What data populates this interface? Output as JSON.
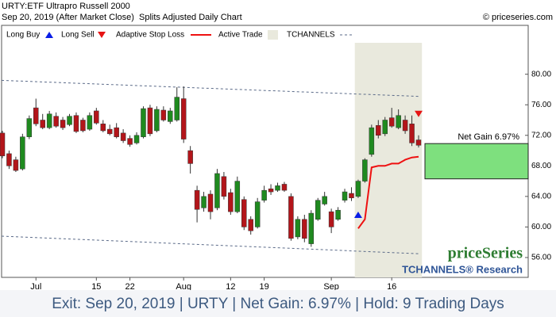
{
  "header": {
    "title": "URTY:ETF Ultrapro Russell 2000",
    "subtitle": "Sep 20, 2019 (After Market Close)  Splits Adjusted Daily Chart",
    "copyright": "© priceseries.com"
  },
  "chart_data": {
    "type": "candlestick",
    "categories": [
      null,
      null,
      null,
      null,
      null,
      "Jul",
      null,
      null,
      null,
      null,
      null,
      null,
      null,
      null,
      "15",
      null,
      null,
      null,
      null,
      "22",
      null,
      null,
      null,
      null,
      null,
      null,
      null,
      "Aug",
      null,
      null,
      null,
      null,
      null,
      null,
      "12",
      null,
      null,
      null,
      null,
      "19",
      null,
      null,
      null,
      null,
      null,
      null,
      null,
      null,
      null,
      "Sep",
      null,
      null,
      null,
      null,
      null,
      null,
      null,
      null,
      "16",
      null,
      null,
      null,
      null
    ],
    "open": [
      72.3,
      69.6,
      68.8,
      67.6,
      71.8,
      75.6,
      74.0,
      73.0,
      74.5,
      74.0,
      73.4,
      74.6,
      74.0,
      72.8,
      75.2,
      73.5,
      72.8,
      73.0,
      72.3,
      71.6,
      71.0,
      71.8,
      75.6,
      72.6,
      75.3,
      73.8,
      74.0,
      76.8,
      70.0,
      64.8,
      62.5,
      64.3,
      62.5,
      66.6,
      64.5,
      62.0,
      63.6,
      61.0,
      60.0,
      63.5,
      65.0,
      64.8,
      65.6,
      64.0,
      58.7,
      61.0,
      57.8,
      61.0,
      63.0,
      62.0,
      61.0,
      63.5,
      64.4,
      64.0,
      66.0,
      69.5,
      73.3,
      72.2,
      74.3,
      73.0,
      74.0,
      73.5,
      71.4
    ],
    "high": [
      72.6,
      70.0,
      69.2,
      72.2,
      74.6,
      76.8,
      74.8,
      75.2,
      75.0,
      74.4,
      74.8,
      75.0,
      74.3,
      75.0,
      75.6,
      74.0,
      73.4,
      73.6,
      72.8,
      72.0,
      72.4,
      75.8,
      76.0,
      75.8,
      75.8,
      75.6,
      78.3,
      78.4,
      70.6,
      65.4,
      64.6,
      64.8,
      67.6,
      67.2,
      65.0,
      66.6,
      64.0,
      61.4,
      63.8,
      65.4,
      65.6,
      65.8,
      65.9,
      64.4,
      61.4,
      61.6,
      62.2,
      63.8,
      64.6,
      62.4,
      62.6,
      65.0,
      65.2,
      66.2,
      69.0,
      73.4,
      74.0,
      74.4,
      75.6,
      75.4,
      74.6,
      74.6,
      72.0
    ],
    "low": [
      69.0,
      67.6,
      67.2,
      67.4,
      71.5,
      73.2,
      72.8,
      72.8,
      73.0,
      72.7,
      73.2,
      72.3,
      72.4,
      72.6,
      73.4,
      72.4,
      72.0,
      71.6,
      71.0,
      70.5,
      70.8,
      71.6,
      71.9,
      72.4,
      73.8,
      73.5,
      73.8,
      71.0,
      67.0,
      60.6,
      62.0,
      61.0,
      62.2,
      63.6,
      61.6,
      61.8,
      59.6,
      59.0,
      59.8,
      63.2,
      64.2,
      64.6,
      64.6,
      58.2,
      58.4,
      58.0,
      57.4,
      60.8,
      62.8,
      59.2,
      60.8,
      63.2,
      63.4,
      63.8,
      65.8,
      69.2,
      71.6,
      71.9,
      73.0,
      72.8,
      72.2,
      70.6,
      70.4
    ],
    "close": [
      69.3,
      68.0,
      67.4,
      71.8,
      74.2,
      73.5,
      73.0,
      74.8,
      73.2,
      73.0,
      74.5,
      72.5,
      72.6,
      74.6,
      73.6,
      72.6,
      72.2,
      71.8,
      71.3,
      70.8,
      72.0,
      75.5,
      72.2,
      75.4,
      74.0,
      75.2,
      77.0,
      71.5,
      68.3,
      62.3,
      64.0,
      62.0,
      67.0,
      64.0,
      62.0,
      66.0,
      60.0,
      59.5,
      63.3,
      64.8,
      64.6,
      65.4,
      64.8,
      58.5,
      61.0,
      58.5,
      61.8,
      63.5,
      64.0,
      60.0,
      62.2,
      64.6,
      63.8,
      66.0,
      68.8,
      73.0,
      72.0,
      74.0,
      73.2,
      74.6,
      72.6,
      71.0,
      70.7
    ],
    "up_color": "#1f8a1f",
    "down_color": "#b3151a",
    "ylim": [
      53.4,
      86.4
    ],
    "yticks": [
      {
        "value": 56,
        "label": "56.00"
      },
      {
        "value": 60,
        "label": "60.00"
      },
      {
        "value": 64,
        "label": "64.00"
      },
      {
        "value": 68,
        "label": "68.00"
      },
      {
        "value": 72,
        "label": "72.00"
      },
      {
        "value": 76,
        "label": "76.00"
      },
      {
        "value": 80,
        "label": "80.00"
      }
    ],
    "series": [
      {
        "name": "Long Buy",
        "color": "#0a1ee6",
        "marker": "triangle-up",
        "values": [
          null,
          null,
          null,
          null,
          null,
          null,
          null,
          null,
          null,
          null,
          null,
          null,
          null,
          null,
          null,
          null,
          null,
          null,
          null,
          null,
          null,
          null,
          null,
          null,
          null,
          null,
          null,
          null,
          null,
          null,
          null,
          null,
          null,
          null,
          null,
          null,
          null,
          null,
          null,
          null,
          null,
          null,
          null,
          null,
          null,
          null,
          null,
          null,
          null,
          null,
          null,
          null,
          null,
          61.6,
          null,
          null,
          null,
          null,
          null,
          null,
          null,
          null,
          null
        ]
      },
      {
        "name": "Long Sell",
        "color": "#e61414",
        "marker": "triangle-down",
        "values": [
          null,
          null,
          null,
          null,
          null,
          null,
          null,
          null,
          null,
          null,
          null,
          null,
          null,
          null,
          null,
          null,
          null,
          null,
          null,
          null,
          null,
          null,
          null,
          null,
          null,
          null,
          null,
          null,
          null,
          null,
          null,
          null,
          null,
          null,
          null,
          null,
          null,
          null,
          null,
          null,
          null,
          null,
          null,
          null,
          null,
          null,
          null,
          null,
          null,
          null,
          null,
          null,
          null,
          null,
          null,
          null,
          null,
          null,
          null,
          null,
          null,
          null,
          74.8
        ]
      },
      {
        "name": "Adaptive Stop Loss",
        "color": "#ee1111",
        "marker": "line",
        "values": [
          null,
          null,
          null,
          null,
          null,
          null,
          null,
          null,
          null,
          null,
          null,
          null,
          null,
          null,
          null,
          null,
          null,
          null,
          null,
          null,
          null,
          null,
          null,
          null,
          null,
          null,
          null,
          null,
          null,
          null,
          null,
          null,
          null,
          null,
          null,
          null,
          null,
          null,
          null,
          null,
          null,
          null,
          null,
          null,
          null,
          null,
          null,
          null,
          null,
          null,
          null,
          null,
          null,
          59.8,
          61.0,
          67.8,
          68.0,
          68.0,
          68.3,
          68.3,
          68.8,
          69.1,
          69.2
        ]
      }
    ],
    "active_trade": {
      "name": "Active Trade",
      "color": "#e9e9dd"
    },
    "channels": {
      "name": "TCHANNELS",
      "color": "#5a6a88",
      "upper": [
        79.2,
        77.1
      ],
      "lower": [
        58.8,
        56.5
      ]
    },
    "net_gain": {
      "label": "Net Gain 6.97%",
      "low": 66.3,
      "high": 70.92,
      "color": "#7ee07e"
    },
    "watermark": {
      "brand": "priceSeries",
      "sub": "TCHANNELS® Research"
    }
  },
  "footer": "Exit: Sep 20, 2019 | URTY | Net Gain: 6.97% | Hold: 9 Trading Days"
}
